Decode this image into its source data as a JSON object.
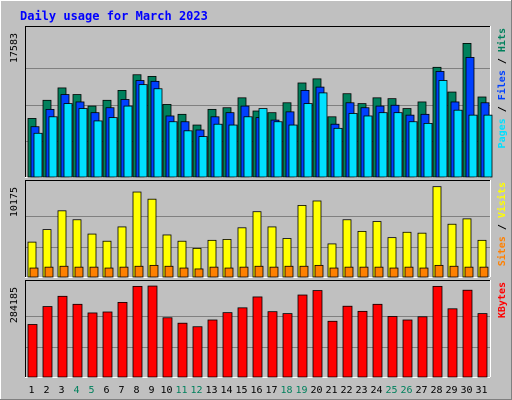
{
  "title": "Daily usage for March 2023",
  "colors": {
    "background": "#c0c0c0",
    "title": "#0000ff",
    "hits": "#00805c",
    "files": "#0040ff",
    "pages": "#00e0ff",
    "visits": "#ffff00",
    "sites": "#ff8000",
    "kbytes": "#ff0000",
    "weekend_day_label": "#00805c",
    "day_label": "#000000"
  },
  "chart_data": [
    {
      "type": "bar",
      "name": "hits-files-pages",
      "categories": [
        "1",
        "2",
        "3",
        "4",
        "5",
        "6",
        "7",
        "8",
        "9",
        "10",
        "11",
        "12",
        "13",
        "14",
        "15",
        "16",
        "17",
        "18",
        "19",
        "20",
        "21",
        "22",
        "23",
        "24",
        "25",
        "26",
        "27",
        "28",
        "29",
        "30",
        "31"
      ],
      "ymax_label": "17583",
      "ymax": 17583,
      "ylim": [
        0,
        17583
      ],
      "right_label": {
        "parts": [
          {
            "text": "Pages",
            "color": "#00e0ff"
          },
          {
            "text": " / ",
            "color": "#000000"
          },
          {
            "text": "Files",
            "color": "#0040ff"
          },
          {
            "text": " / ",
            "color": "#000000"
          },
          {
            "text": "Hits",
            "color": "#00805c"
          }
        ]
      },
      "series": [
        {
          "name": "Hits",
          "values": [
            7100,
            9300,
            10800,
            10000,
            8600,
            9300,
            10500,
            12400,
            12200,
            8800,
            7600,
            6300,
            8200,
            8400,
            9600,
            8000,
            7800,
            9000,
            11400,
            11900,
            7300,
            10100,
            8900,
            9600,
            9500,
            8300,
            9100,
            13300,
            10300,
            16200,
            9700
          ]
        },
        {
          "name": "Files",
          "values": [
            6100,
            8200,
            10000,
            9100,
            7800,
            8400,
            9400,
            11700,
            11600,
            7400,
            6700,
            5700,
            7300,
            7800,
            8600,
            7200,
            6900,
            7900,
            10500,
            10900,
            6400,
            9000,
            8400,
            8600,
            8700,
            7500,
            7600,
            12800,
            9100,
            14500,
            9000
          ]
        },
        {
          "name": "Pages",
          "values": [
            5300,
            7300,
            8900,
            8300,
            6800,
            7200,
            8600,
            11200,
            10700,
            6700,
            5600,
            4900,
            6400,
            6300,
            7300,
            8300,
            6700,
            6300,
            8900,
            10200,
            5900,
            7700,
            7400,
            7800,
            7800,
            6700,
            6500,
            11700,
            8100,
            7500,
            7500
          ]
        }
      ]
    },
    {
      "type": "bar",
      "name": "visits-sites",
      "categories": [
        "1",
        "2",
        "3",
        "4",
        "5",
        "6",
        "7",
        "8",
        "9",
        "10",
        "11",
        "12",
        "13",
        "14",
        "15",
        "16",
        "17",
        "18",
        "19",
        "20",
        "21",
        "22",
        "23",
        "24",
        "25",
        "26",
        "27",
        "28",
        "29",
        "30",
        "31"
      ],
      "ymax_label": "10175",
      "ymax": 10175,
      "ylim": [
        0,
        10175
      ],
      "right_label": {
        "parts": [
          {
            "text": "Sites",
            "color": "#ff8000"
          },
          {
            "text": " / ",
            "color": "#000000"
          },
          {
            "text": "Visits",
            "color": "#ffff00"
          }
        ]
      },
      "series": [
        {
          "name": "Visits",
          "values": [
            3900,
            5300,
            7400,
            6400,
            4800,
            4000,
            5600,
            9500,
            8700,
            4700,
            4000,
            3200,
            4100,
            4200,
            5500,
            7300,
            5600,
            4300,
            8000,
            8500,
            3700,
            6400,
            5100,
            6200,
            4400,
            5000,
            4900,
            10100,
            5900,
            6500,
            4100
          ]
        },
        {
          "name": "Sites",
          "values": [
            1000,
            1100,
            1200,
            1100,
            1100,
            1000,
            1100,
            1200,
            1300,
            1200,
            1000,
            900,
            1100,
            1000,
            1100,
            1200,
            1100,
            1200,
            1200,
            1300,
            1000,
            1100,
            1100,
            1100,
            1000,
            1100,
            1000,
            1300,
            1200,
            1100,
            1100
          ]
        }
      ]
    },
    {
      "type": "bar",
      "name": "kbytes",
      "categories": [
        "1",
        "2",
        "3",
        "4",
        "5",
        "6",
        "7",
        "8",
        "9",
        "10",
        "11",
        "12",
        "13",
        "14",
        "15",
        "16",
        "17",
        "18",
        "19",
        "20",
        "21",
        "22",
        "23",
        "24",
        "25",
        "26",
        "27",
        "28",
        "29",
        "30",
        "31"
      ],
      "ymax_label": "284185",
      "ymax": 284185,
      "ylim": [
        0,
        284185
      ],
      "right_label": {
        "parts": [
          {
            "text": "KBytes",
            "color": "#ff0000"
          }
        ]
      },
      "series": [
        {
          "name": "KBytes",
          "values": [
            164000,
            220000,
            252000,
            227000,
            200000,
            203000,
            233000,
            283000,
            284000,
            185000,
            168000,
            157000,
            178000,
            201000,
            216000,
            250000,
            204000,
            198000,
            256000,
            270000,
            174000,
            221000,
            205000,
            227000,
            189000,
            178000,
            188000,
            283000,
            213000,
            271000,
            198000
          ]
        }
      ]
    }
  ],
  "day_labels": [
    {
      "text": "1",
      "weekend": false
    },
    {
      "text": "2",
      "weekend": false
    },
    {
      "text": "3",
      "weekend": false
    },
    {
      "text": "4",
      "weekend": true
    },
    {
      "text": "5",
      "weekend": true
    },
    {
      "text": "6",
      "weekend": false
    },
    {
      "text": "7",
      "weekend": false
    },
    {
      "text": "8",
      "weekend": false
    },
    {
      "text": "9",
      "weekend": false
    },
    {
      "text": "10",
      "weekend": false
    },
    {
      "text": "11",
      "weekend": true
    },
    {
      "text": "12",
      "weekend": true
    },
    {
      "text": "13",
      "weekend": false
    },
    {
      "text": "14",
      "weekend": false
    },
    {
      "text": "15",
      "weekend": false
    },
    {
      "text": "16",
      "weekend": false
    },
    {
      "text": "17",
      "weekend": false
    },
    {
      "text": "18",
      "weekend": true
    },
    {
      "text": "19",
      "weekend": true
    },
    {
      "text": "20",
      "weekend": false
    },
    {
      "text": "21",
      "weekend": false
    },
    {
      "text": "22",
      "weekend": false
    },
    {
      "text": "23",
      "weekend": false
    },
    {
      "text": "24",
      "weekend": false
    },
    {
      "text": "25",
      "weekend": true
    },
    {
      "text": "26",
      "weekend": true
    },
    {
      "text": "27",
      "weekend": false
    },
    {
      "text": "28",
      "weekend": false
    },
    {
      "text": "29",
      "weekend": false
    },
    {
      "text": "30",
      "weekend": false
    },
    {
      "text": "31",
      "weekend": false
    }
  ]
}
